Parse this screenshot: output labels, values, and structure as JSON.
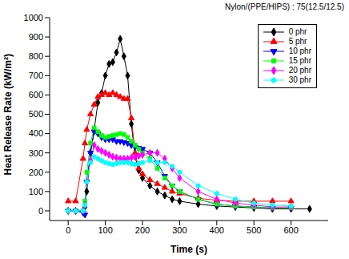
{
  "chart_data": {
    "type": "line",
    "title": "Nylon/(PPE/HIPS) : 75(12.5/12.5)",
    "x_label": "Time (s)",
    "y_label": "Heat Release Rate (kW/m²)",
    "x": [
      0,
      20,
      40,
      45,
      50,
      60,
      70,
      80,
      90,
      100,
      110,
      120,
      130,
      140,
      150,
      160,
      170,
      180,
      190,
      200,
      220,
      240,
      260,
      280,
      300,
      350,
      400,
      450,
      500,
      550,
      600,
      650
    ],
    "xlim": [
      -50,
      700
    ],
    "xticks": [
      0,
      100,
      200,
      300,
      400,
      500,
      600
    ],
    "ylim": [
      -50,
      1000
    ],
    "yticks": [
      0,
      100,
      200,
      300,
      400,
      500,
      600,
      700,
      800,
      900,
      1000
    ],
    "grid": false,
    "legend": "upper right",
    "series": [
      {
        "name": "0 phr",
        "color": "#000000",
        "marker": "diamond",
        "values": [
          0,
          0,
          0,
          20,
          100,
          300,
          420,
          560,
          610,
          700,
          760,
          770,
          820,
          890,
          800,
          700,
          450,
          280,
          210,
          170,
          130,
          100,
          80,
          60,
          50,
          35,
          25,
          20,
          15,
          10,
          10,
          10
        ]
      },
      {
        "name": "5 phr",
        "color": "#ff0000",
        "marker": "triangle",
        "values": [
          50,
          50,
          270,
          350,
          420,
          500,
          550,
          590,
          600,
          610,
          600,
          610,
          600,
          590,
          580,
          580,
          480,
          300,
          220,
          190,
          160,
          140,
          120,
          100,
          90,
          65,
          55,
          50,
          50,
          50,
          50,
          null
        ]
      },
      {
        "name": "10 phr",
        "color": "#0000ff",
        "marker": "triangle-down",
        "values": [
          0,
          0,
          -10,
          -20,
          150,
          300,
          410,
          400,
          380,
          370,
          370,
          370,
          360,
          360,
          355,
          350,
          340,
          330,
          325,
          320,
          300,
          250,
          180,
          130,
          100,
          60,
          35,
          25,
          20,
          15,
          15,
          null
        ]
      },
      {
        "name": "15 phr",
        "color": "#00ff00",
        "marker": "square",
        "values": [
          0,
          0,
          0,
          50,
          200,
          350,
          430,
          410,
          390,
          380,
          385,
          390,
          395,
          400,
          395,
          380,
          360,
          340,
          320,
          300,
          270,
          220,
          170,
          130,
          100,
          60,
          35,
          25,
          20,
          15,
          15,
          null
        ]
      },
      {
        "name": "20 phr",
        "color": "#ff00ff",
        "marker": "diamond",
        "values": [
          0,
          0,
          0,
          30,
          150,
          260,
          340,
          320,
          310,
          300,
          290,
          280,
          275,
          270,
          270,
          270,
          275,
          280,
          285,
          290,
          300,
          300,
          270,
          220,
          170,
          100,
          60,
          40,
          30,
          20,
          20,
          null
        ]
      },
      {
        "name": "30 phr",
        "color": "#00ffff",
        "marker": "circle",
        "values": [
          0,
          0,
          0,
          30,
          150,
          250,
          280,
          270,
          260,
          250,
          245,
          240,
          245,
          250,
          250,
          250,
          245,
          240,
          245,
          250,
          260,
          250,
          250,
          230,
          200,
          130,
          90,
          60,
          40,
          30,
          25,
          null
        ]
      }
    ]
  }
}
